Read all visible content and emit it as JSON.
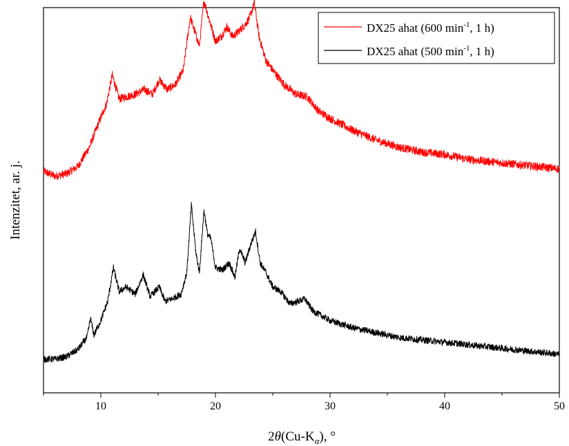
{
  "chart_data": {
    "type": "line",
    "xlabel": {
      "base": "2",
      "theta": "θ",
      "open": "(Cu-K",
      "sub": "α",
      "close": "), °"
    },
    "ylabel": "Intenzitet, ar. j.",
    "xlim": [
      5,
      50
    ],
    "ylim": [
      0,
      1.6
    ],
    "xticks": [
      10,
      20,
      30,
      40,
      50
    ],
    "yticks_visible": false,
    "grid": false,
    "legend_position": "top-right",
    "series": [
      {
        "name": "DX25 ahat (600 min-1, 1 h)",
        "legend": {
          "pre": "DX25 ahat (600 min",
          "sup": "-1",
          "post": ", 1 h)"
        },
        "color": "#ff0000",
        "offset": 0.9,
        "noise": 0.035,
        "points": [
          [
            5,
            0.02
          ],
          [
            6,
            0.0
          ],
          [
            7,
            0.01
          ],
          [
            8,
            0.04
          ],
          [
            9,
            0.12
          ],
          [
            9.8,
            0.22
          ],
          [
            10.5,
            0.3
          ],
          [
            11.0,
            0.42
          ],
          [
            11.6,
            0.32
          ],
          [
            12.2,
            0.33
          ],
          [
            13.0,
            0.34
          ],
          [
            13.8,
            0.36
          ],
          [
            14.5,
            0.34
          ],
          [
            15.1,
            0.4
          ],
          [
            15.8,
            0.36
          ],
          [
            16.5,
            0.38
          ],
          [
            17.2,
            0.44
          ],
          [
            17.8,
            0.66
          ],
          [
            18.2,
            0.6
          ],
          [
            18.6,
            0.54
          ],
          [
            19.0,
            0.73
          ],
          [
            19.4,
            0.66
          ],
          [
            20.0,
            0.56
          ],
          [
            20.5,
            0.58
          ],
          [
            21.0,
            0.62
          ],
          [
            21.5,
            0.58
          ],
          [
            22.0,
            0.6
          ],
          [
            22.6,
            0.63
          ],
          [
            23.0,
            0.66
          ],
          [
            23.4,
            0.72
          ],
          [
            23.8,
            0.58
          ],
          [
            24.4,
            0.48
          ],
          [
            25.0,
            0.44
          ],
          [
            26.0,
            0.38
          ],
          [
            27.0,
            0.34
          ],
          [
            28.0,
            0.33
          ],
          [
            29.0,
            0.27
          ],
          [
            30.0,
            0.24
          ],
          [
            32.0,
            0.19
          ],
          [
            34.0,
            0.15
          ],
          [
            36.0,
            0.12
          ],
          [
            38.0,
            0.1
          ],
          [
            40.0,
            0.09
          ],
          [
            42.0,
            0.07
          ],
          [
            44.0,
            0.06
          ],
          [
            46.0,
            0.05
          ],
          [
            48.0,
            0.04
          ],
          [
            50.0,
            0.03
          ]
        ]
      },
      {
        "name": "DX25 ahat (500 min-1, 1 h)",
        "legend": {
          "pre": "DX25 ahat (500 min",
          "sup": "-1",
          "post": ", 1 h)"
        },
        "color": "#000000",
        "offset": 0.14,
        "noise": 0.028,
        "points": [
          [
            5,
            0.0
          ],
          [
            6,
            0.0
          ],
          [
            7,
            0.01
          ],
          [
            8,
            0.04
          ],
          [
            8.8,
            0.09
          ],
          [
            9.1,
            0.17
          ],
          [
            9.4,
            0.1
          ],
          [
            10.0,
            0.16
          ],
          [
            10.6,
            0.24
          ],
          [
            11.1,
            0.38
          ],
          [
            11.6,
            0.28
          ],
          [
            12.2,
            0.3
          ],
          [
            13.0,
            0.27
          ],
          [
            13.7,
            0.35
          ],
          [
            14.3,
            0.26
          ],
          [
            15.1,
            0.3
          ],
          [
            15.6,
            0.24
          ],
          [
            16.2,
            0.25
          ],
          [
            17.0,
            0.27
          ],
          [
            17.5,
            0.36
          ],
          [
            17.9,
            0.64
          ],
          [
            18.3,
            0.44
          ],
          [
            18.6,
            0.36
          ],
          [
            19.0,
            0.62
          ],
          [
            19.3,
            0.52
          ],
          [
            19.6,
            0.5
          ],
          [
            20.0,
            0.38
          ],
          [
            20.6,
            0.37
          ],
          [
            21.2,
            0.4
          ],
          [
            21.7,
            0.34
          ],
          [
            22.1,
            0.46
          ],
          [
            22.6,
            0.4
          ],
          [
            23.1,
            0.48
          ],
          [
            23.5,
            0.53
          ],
          [
            23.9,
            0.4
          ],
          [
            24.4,
            0.36
          ],
          [
            25.0,
            0.3
          ],
          [
            25.7,
            0.28
          ],
          [
            26.5,
            0.23
          ],
          [
            27.2,
            0.24
          ],
          [
            27.8,
            0.25
          ],
          [
            28.5,
            0.2
          ],
          [
            30.0,
            0.16
          ],
          [
            32.0,
            0.13
          ],
          [
            34.0,
            0.11
          ],
          [
            36.0,
            0.09
          ],
          [
            38.0,
            0.08
          ],
          [
            40.0,
            0.07
          ],
          [
            42.0,
            0.06
          ],
          [
            44.0,
            0.05
          ],
          [
            46.0,
            0.04
          ],
          [
            48.0,
            0.03
          ],
          [
            50.0,
            0.02
          ]
        ]
      }
    ]
  }
}
